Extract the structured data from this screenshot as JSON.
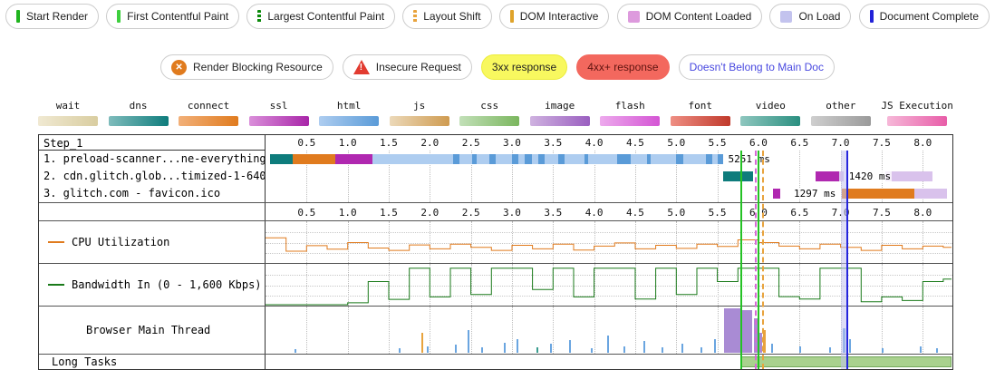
{
  "legend_markers": [
    {
      "label": "Start Render",
      "icon": "solid-bar-icon",
      "color": "#20b41e"
    },
    {
      "label": "First Contentful Paint",
      "icon": "solid-bar-icon",
      "color": "#3ecf3e"
    },
    {
      "label": "Largest Contentful Paint",
      "icon": "dashed-bar-icon",
      "color": "#0b8a0b"
    },
    {
      "label": "Layout Shift",
      "icon": "dashed-bar-icon",
      "color": "#e8a33d"
    },
    {
      "label": "DOM Interactive",
      "icon": "solid-bar-icon",
      "color": "#dfa32a"
    },
    {
      "label": "DOM Content Loaded",
      "icon": "box-icon",
      "color": "#dd9add"
    },
    {
      "label": "On Load",
      "icon": "box-icon",
      "color": "#c3c3ee"
    },
    {
      "label": "Document Complete",
      "icon": "solid-bar-icon",
      "color": "#2222d8"
    }
  ],
  "legend_flags": [
    {
      "label": "Render Blocking Resource",
      "type": "circle-x",
      "color": "#e07b1e"
    },
    {
      "label": "Insecure Request",
      "type": "triangle-exclaim",
      "color": "#e23b30"
    },
    {
      "label": "3xx response",
      "type": "badge",
      "bg": "#f8f85f",
      "fg": "#222222",
      "border": "#ecec3a"
    },
    {
      "label": "4xx+ response",
      "type": "badge",
      "bg": "#f3685e",
      "fg": "#5f1410",
      "border": "#f3685e"
    },
    {
      "label": "Doesn't Belong to Main Doc",
      "type": "badge",
      "bg": "#ffffff",
      "fg": "#4949e0",
      "border": "#cccccc"
    }
  ],
  "resource_types": [
    {
      "label": "wait",
      "light": "#f0e9d2",
      "dark": "#d9cda0"
    },
    {
      "label": "dns",
      "light": "#7fbcbc",
      "dark": "#0e7c7c"
    },
    {
      "label": "connect",
      "light": "#f2b079",
      "dark": "#e07b1e"
    },
    {
      "label": "ssl",
      "light": "#da8fda",
      "dark": "#a825a8"
    },
    {
      "label": "html",
      "light": "#aecdf0",
      "dark": "#5a9bd8"
    },
    {
      "label": "js",
      "light": "#ecd9b9",
      "dark": "#cf9b50"
    },
    {
      "label": "css",
      "light": "#c2e0b8",
      "dark": "#7ab65e"
    },
    {
      "label": "image",
      "light": "#cfb2e0",
      "dark": "#9a5fc0"
    },
    {
      "label": "flash",
      "light": "#edaaed",
      "dark": "#d455d4"
    },
    {
      "label": "font",
      "light": "#ef8f84",
      "dark": "#c0392b"
    },
    {
      "label": "video",
      "light": "#8fc7bf",
      "dark": "#2a8f80"
    },
    {
      "label": "other",
      "light": "#cfcfcf",
      "dark": "#9a9a9a"
    },
    {
      "label": "JS Execution",
      "light": "#f6b8d8",
      "dark": "#e85da8"
    }
  ],
  "waterfall": {
    "step_label": "Step_1",
    "t_max": 8.35,
    "time_ticks": [
      "0.5",
      "1.0",
      "1.5",
      "2.0",
      "2.5",
      "3.0",
      "3.5",
      "4.0",
      "4.5",
      "5.0",
      "5.5",
      "6.0",
      "6.5",
      "7.0",
      "7.5",
      "8.0"
    ],
    "palette": {
      "dns": "#0e7c7c",
      "connect": "#e07b1e",
      "ssl": "#b028b0",
      "html_light": "#aecdf0",
      "html_dark": "#5a9bd8",
      "image_light": "#d9c2ec"
    },
    "requests": [
      {
        "label": "1. preload-scanner...ne-everything.html",
        "segments": [
          [
            "dns",
            0.05,
            0.33
          ],
          [
            "connect",
            0.33,
            0.85
          ],
          [
            "ssl",
            0.85,
            1.3
          ],
          [
            "html_light",
            1.3,
            5.57
          ],
          [
            "html_dark",
            2.28,
            2.36
          ],
          [
            "html_dark",
            2.52,
            2.57
          ],
          [
            "html_dark",
            2.72,
            2.8
          ],
          [
            "html_dark",
            3.0,
            3.08
          ],
          [
            "html_dark",
            3.16,
            3.24
          ],
          [
            "html_dark",
            3.32,
            3.4
          ],
          [
            "html_dark",
            3.56,
            3.64
          ],
          [
            "html_dark",
            3.88,
            3.93
          ],
          [
            "html_dark",
            4.28,
            4.44
          ],
          [
            "html_dark",
            4.64,
            4.69
          ],
          [
            "html_dark",
            5.0,
            5.08
          ],
          [
            "html_dark",
            5.36,
            5.44
          ],
          [
            "html_dark",
            5.5,
            5.57
          ]
        ],
        "annotation": {
          "t": 5.62,
          "text": "5251 ms"
        }
      },
      {
        "label": "2. cdn.glitch.glob...timized-1-640w.jpg",
        "segments": [
          [
            "dns",
            5.57,
            5.93
          ],
          [
            "ssl",
            6.7,
            6.98
          ],
          [
            "image_light",
            6.98,
            7.04
          ],
          [
            "image_light",
            7.55,
            8.12
          ]
        ],
        "annotation": {
          "t": 7.09,
          "text": "1420 ms"
        }
      },
      {
        "label": "3. glitch.com - favicon.ico",
        "segments": [
          [
            "ssl",
            6.18,
            6.26
          ],
          [
            "connect",
            7.02,
            7.9
          ],
          [
            "image_light",
            7.9,
            8.3
          ]
        ],
        "annotation": {
          "t": 6.42,
          "text": "1297 ms"
        }
      }
    ],
    "event_lines": [
      {
        "t": 5.78,
        "color": "#24c224",
        "style": "solid",
        "name": "start-render-line"
      },
      {
        "t": 5.96,
        "color": "#d668d6",
        "style": "dashed",
        "name": "dom-content-loaded-line"
      },
      {
        "t": 5.99,
        "color": "#24c224",
        "style": "solid",
        "name": "first-contentful-paint-line"
      },
      {
        "t": 6.04,
        "color": "#e8a33d",
        "style": "dashed",
        "name": "layout-shift-line"
      },
      {
        "t": 7.07,
        "color": "#2525dd",
        "style": "solid",
        "name": "document-complete-line"
      }
    ],
    "event_bands": [
      {
        "from": 6.99,
        "to": 7.07,
        "color": "rgba(195,195,238,0.55)",
        "name": "on-load-band"
      }
    ]
  },
  "charts": {
    "cpu": {
      "label": "CPU Utilization",
      "color": "#e07b1e",
      "interval": 0.25,
      "max": 100,
      "values": [
        62,
        28,
        42,
        33,
        50,
        36,
        30,
        44,
        34,
        46,
        38,
        30,
        43,
        34,
        46,
        31,
        41,
        49,
        34,
        43,
        35,
        46,
        40,
        57,
        50,
        41,
        34,
        46,
        38,
        30,
        43,
        34,
        41,
        38
      ]
    },
    "bandwidth": {
      "label": "Bandwidth In (0 - 1,600 Kbps)",
      "color": "#1a7a1a",
      "interval": 0.25,
      "max": 1600,
      "values": [
        0,
        0,
        0,
        0,
        80,
        950,
        220,
        1500,
        320,
        1500,
        420,
        1500,
        1500,
        620,
        1500,
        320,
        1500,
        1500,
        230,
        1500,
        420,
        1500,
        950,
        1500,
        1500,
        330,
        230,
        1500,
        1500,
        120,
        320,
        170,
        950,
        1050
      ]
    },
    "main_thread": {
      "label": "Browser Main Thread",
      "colors": {
        "blue": "#6aa5e0",
        "orange": "#e8a33d",
        "purple": "#a98bd4",
        "teal": "#3a9d8f"
      },
      "bars": [
        [
          0.35,
          0.08,
          "blue"
        ],
        [
          1.62,
          0.1,
          "blue"
        ],
        [
          1.9,
          0.45,
          "orange"
        ],
        [
          1.96,
          0.14,
          "blue"
        ],
        [
          2.3,
          0.18,
          "blue"
        ],
        [
          2.46,
          0.5,
          "blue"
        ],
        [
          2.62,
          0.12,
          "blue"
        ],
        [
          2.9,
          0.22,
          "blue"
        ],
        [
          3.06,
          0.3,
          "blue"
        ],
        [
          3.3,
          0.12,
          "teal"
        ],
        [
          3.46,
          0.2,
          "blue"
        ],
        [
          3.7,
          0.28,
          "blue"
        ],
        [
          3.96,
          0.1,
          "blue"
        ],
        [
          4.16,
          0.38,
          "blue"
        ],
        [
          4.36,
          0.15,
          "blue"
        ],
        [
          4.6,
          0.27,
          "blue"
        ],
        [
          4.82,
          0.12,
          "blue"
        ],
        [
          5.06,
          0.2,
          "blue"
        ],
        [
          5.3,
          0.12,
          "blue"
        ],
        [
          5.46,
          0.3,
          "blue"
        ],
        [
          5.58,
          1.0,
          "purple",
          0.2
        ],
        [
          5.8,
          0.95,
          "purple",
          0.12
        ],
        [
          5.94,
          0.78,
          "purple",
          0.05
        ],
        [
          6.0,
          0.45,
          "purple",
          0.04
        ],
        [
          6.06,
          0.5,
          "orange",
          0.03
        ],
        [
          6.16,
          0.2,
          "blue"
        ],
        [
          6.5,
          0.15,
          "blue"
        ],
        [
          6.86,
          0.12,
          "blue"
        ],
        [
          7.03,
          0.55,
          "blue",
          0.03
        ],
        [
          7.1,
          0.3,
          "blue"
        ],
        [
          7.5,
          0.1,
          "blue"
        ],
        [
          7.96,
          0.14,
          "blue"
        ],
        [
          8.16,
          0.1,
          "blue"
        ]
      ]
    },
    "long_tasks": {
      "label": "Long Tasks",
      "fill": "#a9d18e",
      "border": "#74a85c",
      "segments": [
        [
          5.78,
          8.35
        ]
      ]
    }
  }
}
